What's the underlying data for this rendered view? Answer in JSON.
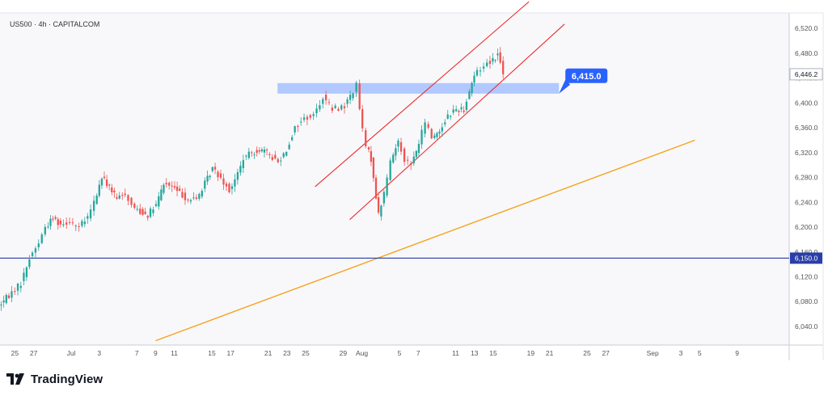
{
  "symbol_label": "US500 · 4h · CAPITALCOM",
  "brand": {
    "name": "TradingView"
  },
  "colors": {
    "up": "#26a69a",
    "down": "#ef5350",
    "zone": "#a9c3ff",
    "callout": "#2962ff",
    "horizontal_line": "#2a3ea8",
    "trendline": "#f7a21b",
    "channel": "#ef2b2b",
    "axis_text": "#555555",
    "background": "#f8f8fb"
  },
  "chart_data": {
    "type": "candlestick",
    "title": "",
    "ylim": [
      6010,
      6545
    ],
    "y_ticks": [
      "6,040.0",
      "6,080.0",
      "6,120.0",
      "6,160.0",
      "6,200.0",
      "6,240.0",
      "6,280.0",
      "6,320.0",
      "6,360.0",
      "6,400.0",
      "6,440.0",
      "6,480.0",
      "6,520.0"
    ],
    "x_ticks": [
      "25",
      "27",
      "Jul",
      "3",
      "7",
      "9",
      "11",
      "15",
      "17",
      "21",
      "23",
      "25",
      "29",
      "Aug",
      "5",
      "7",
      "11",
      "13",
      "15",
      "19",
      "21",
      "25",
      "27",
      "Sep",
      "3",
      "5",
      "9"
    ],
    "x_tick_days": [
      -6,
      -4,
      0,
      3,
      7,
      9,
      11,
      15,
      17,
      21,
      23,
      25,
      29,
      31,
      35,
      37,
      41,
      43,
      45,
      49,
      51,
      55,
      57,
      62,
      65,
      67,
      71
    ],
    "last_price": {
      "label": "6,446.2",
      "value": 6446.2
    },
    "price_path": [
      [
        -7.6,
        6073
      ],
      [
        -6.5,
        6090
      ],
      [
        -5.2,
        6110
      ],
      [
        -4.3,
        6150
      ],
      [
        -3.3,
        6175
      ],
      [
        -2.6,
        6200
      ],
      [
        -1.8,
        6215
      ],
      [
        -1.0,
        6205
      ],
      [
        0,
        6210
      ],
      [
        1.0,
        6200
      ],
      [
        1.9,
        6215
      ],
      [
        2.6,
        6240
      ],
      [
        3.4,
        6280
      ],
      [
        4.2,
        6265
      ],
      [
        5.0,
        6245
      ],
      [
        5.9,
        6255
      ],
      [
        6.6,
        6235
      ],
      [
        7.5,
        6225
      ],
      [
        8.3,
        6220
      ],
      [
        9.2,
        6235
      ],
      [
        10.0,
        6270
      ],
      [
        10.9,
        6265
      ],
      [
        11.7,
        6255
      ],
      [
        12.6,
        6245
      ],
      [
        13.5,
        6245
      ],
      [
        14.4,
        6270
      ],
      [
        15.2,
        6295
      ],
      [
        16.1,
        6280
      ],
      [
        17.0,
        6260
      ],
      [
        17.6,
        6275
      ],
      [
        18.5,
        6310
      ],
      [
        19.4,
        6320
      ],
      [
        20.2,
        6325
      ],
      [
        21.0,
        6320
      ],
      [
        22.2,
        6305
      ],
      [
        23.1,
        6325
      ],
      [
        24.0,
        6360
      ],
      [
        25.0,
        6375
      ],
      [
        26.0,
        6380
      ],
      [
        27.0,
        6410
      ],
      [
        28.0,
        6390
      ],
      [
        29.3,
        6395
      ],
      [
        30.2,
        6420
      ],
      [
        30.6,
        6428
      ],
      [
        31.2,
        6355
      ],
      [
        31.6,
        6330
      ],
      [
        32.1,
        6310
      ],
      [
        32.9,
        6220
      ],
      [
        33.5,
        6255
      ],
      [
        34.2,
        6305
      ],
      [
        35.0,
        6340
      ],
      [
        35.7,
        6310
      ],
      [
        36.4,
        6300
      ],
      [
        37.2,
        6335
      ],
      [
        37.9,
        6370
      ],
      [
        38.6,
        6345
      ],
      [
        39.4,
        6355
      ],
      [
        40.3,
        6380
      ],
      [
        41.2,
        6390
      ],
      [
        42.0,
        6390
      ],
      [
        42.6,
        6420
      ],
      [
        43.1,
        6445
      ],
      [
        43.8,
        6455
      ],
      [
        44.5,
        6465
      ],
      [
        45.1,
        6470
      ],
      [
        45.6,
        6478
      ],
      [
        46.2,
        6450
      ]
    ],
    "horizontal_level": {
      "label": "6,150.0",
      "value": 6150
    },
    "zone": {
      "label": "6,415.0",
      "value": 6415,
      "low": 6415,
      "high": 6432,
      "x_start": 22.0,
      "x_end": 52.0
    },
    "trendline": {
      "from": [
        9.0,
        6017
      ],
      "to": [
        66.5,
        6340
      ]
    },
    "channel_upper": {
      "from": [
        26.0,
        6265
      ],
      "to": [
        48.8,
        6563
      ]
    },
    "channel_lower": {
      "from": [
        29.7,
        6212
      ],
      "to": [
        52.6,
        6527
      ]
    }
  }
}
